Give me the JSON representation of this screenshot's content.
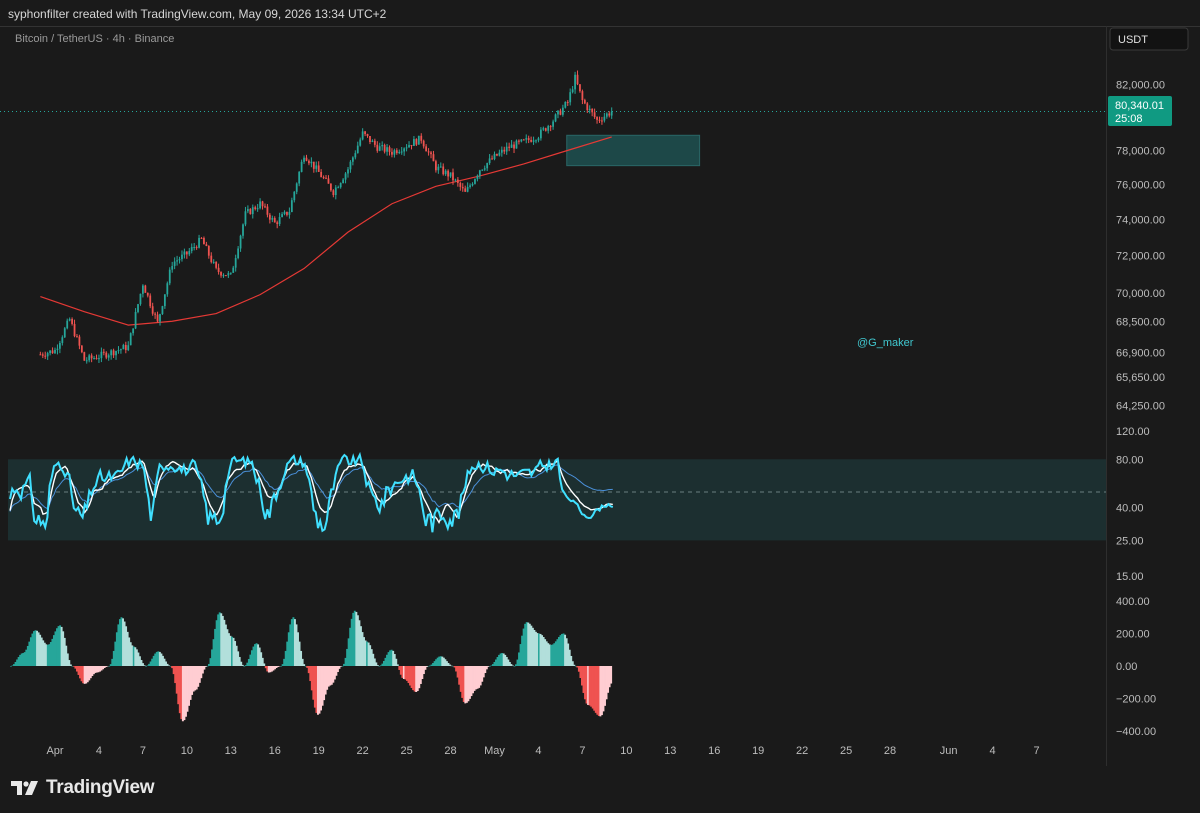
{
  "header": {
    "attribution": "syphonfilter created with TradingView.com, May 09, 2026 13:34 UTC+2"
  },
  "chart": {
    "symbol": "Bitcoin / TetherUS · 4h · Binance",
    "currency_button": "USDT",
    "watermark": "@G_maker",
    "last_price_label": "80,340.01",
    "countdown_label": "25:08"
  },
  "footer": {
    "brand": "TradingView"
  },
  "colors": {
    "background": "#1a1a1a",
    "bull": "#26a69a",
    "bear": "#ef5350",
    "ma_line": "#e53935",
    "rsi_fast": "#40e0ff",
    "rsi_slow": "#ffffff",
    "rsi_signal": "#4a90d9",
    "price_tag": "#109a82",
    "zone": "#1d4848"
  },
  "chart_data": [
    {
      "type": "candlestick",
      "title": "Bitcoin / TetherUS · 4h · Binance",
      "timeframe": "4h",
      "x_ticks": [
        "Apr",
        "4",
        "7",
        "10",
        "13",
        "16",
        "19",
        "22",
        "25",
        "28",
        "May",
        "4",
        "7",
        "10",
        "13",
        "16",
        "19",
        "22",
        "25",
        "28",
        "Jun",
        "4",
        "7"
      ],
      "y_ticks": [
        "82,000.00",
        "78,000.00",
        "76,000.00",
        "74,000.00",
        "72,000.00",
        "70,000.00",
        "68,500.00",
        "66,900.00",
        "65,650.00",
        "64,250.00"
      ],
      "y_scale": "log",
      "ylim": [
        63500,
        83800
      ],
      "last_price": 80340.01,
      "price_path": [
        [
          "Mar 31",
          66800
        ],
        [
          "Apr 1",
          67000
        ],
        [
          "Apr 2",
          68600
        ],
        [
          "Apr 3",
          66500
        ],
        [
          "Apr 4",
          66700
        ],
        [
          "Apr 6",
          67200
        ],
        [
          "Apr 7",
          70500
        ],
        [
          "Apr 8",
          68400
        ],
        [
          "Apr 9",
          71600
        ],
        [
          "Apr 10",
          72100
        ],
        [
          "Apr 11",
          72900
        ],
        [
          "Apr 12",
          71200
        ],
        [
          "Apr 13",
          70900
        ],
        [
          "Apr 14",
          74300
        ],
        [
          "Apr 15",
          74900
        ],
        [
          "Apr 16",
          73800
        ],
        [
          "Apr 17",
          74500
        ],
        [
          "Apr 18",
          77800
        ],
        [
          "Apr 19",
          76700
        ],
        [
          "Apr 20",
          75600
        ],
        [
          "Apr 21",
          76900
        ],
        [
          "Apr 22",
          79000
        ],
        [
          "Apr 23",
          78200
        ],
        [
          "Apr 24",
          77900
        ],
        [
          "Apr 25",
          78300
        ],
        [
          "Apr 26",
          78700
        ],
        [
          "Apr 27",
          77000
        ],
        [
          "Apr 28",
          76500
        ],
        [
          "Apr 29",
          75500
        ],
        [
          "Apr 30",
          76900
        ],
        [
          "May 1",
          77600
        ],
        [
          "May 2",
          78200
        ],
        [
          "May 3",
          78500
        ],
        [
          "May 4",
          78900
        ],
        [
          "May 5",
          79800
        ],
        [
          "May 6",
          80900
        ],
        [
          "May 6.5",
          82400
        ],
        [
          "May 7",
          81000
        ],
        [
          "May 8",
          79800
        ],
        [
          "May 9",
          80340
        ]
      ],
      "moving_average": [
        [
          "Mar 31",
          69800
        ],
        [
          "Apr 3",
          69000
        ],
        [
          "Apr 6",
          68300
        ],
        [
          "Apr 9",
          68500
        ],
        [
          "Apr 12",
          68900
        ],
        [
          "Apr 15",
          69900
        ],
        [
          "Apr 18",
          71300
        ],
        [
          "Apr 21",
          73300
        ],
        [
          "Apr 24",
          74900
        ],
        [
          "Apr 27",
          75900
        ],
        [
          "Apr 30",
          76500
        ],
        [
          "May 3",
          77200
        ],
        [
          "May 6",
          78000
        ],
        [
          "May 9",
          78800
        ]
      ],
      "zone": {
        "from": "May 6",
        "to": "May 15",
        "low": 77100,
        "high": 78900
      }
    },
    {
      "type": "line",
      "name": "RSI",
      "y_ticks": [
        "120.00",
        "80.00",
        "40.00",
        "25.00",
        "15.00"
      ],
      "band": [
        25,
        80
      ],
      "midline": 50,
      "fast_end": 37,
      "slow_end": 38,
      "signal_end": 50
    },
    {
      "type": "area",
      "name": "Momentum oscillator",
      "y_ticks": [
        "400.00",
        "200.00",
        "0.00",
        "−200.00",
        "−400.00"
      ],
      "ylim": [
        -400,
        400
      ],
      "values": [
        0,
        80,
        220,
        130,
        250,
        0,
        -110,
        -40,
        0,
        300,
        120,
        0,
        90,
        0,
        -340,
        -150,
        0,
        330,
        180,
        0,
        140,
        -40,
        0,
        300,
        0,
        -300,
        -120,
        0,
        340,
        150,
        0,
        100,
        -80,
        -160,
        0,
        60,
        0,
        -230,
        -140,
        0,
        80,
        0,
        270,
        200,
        130,
        200,
        0,
        -240,
        -310,
        -100
      ]
    }
  ]
}
